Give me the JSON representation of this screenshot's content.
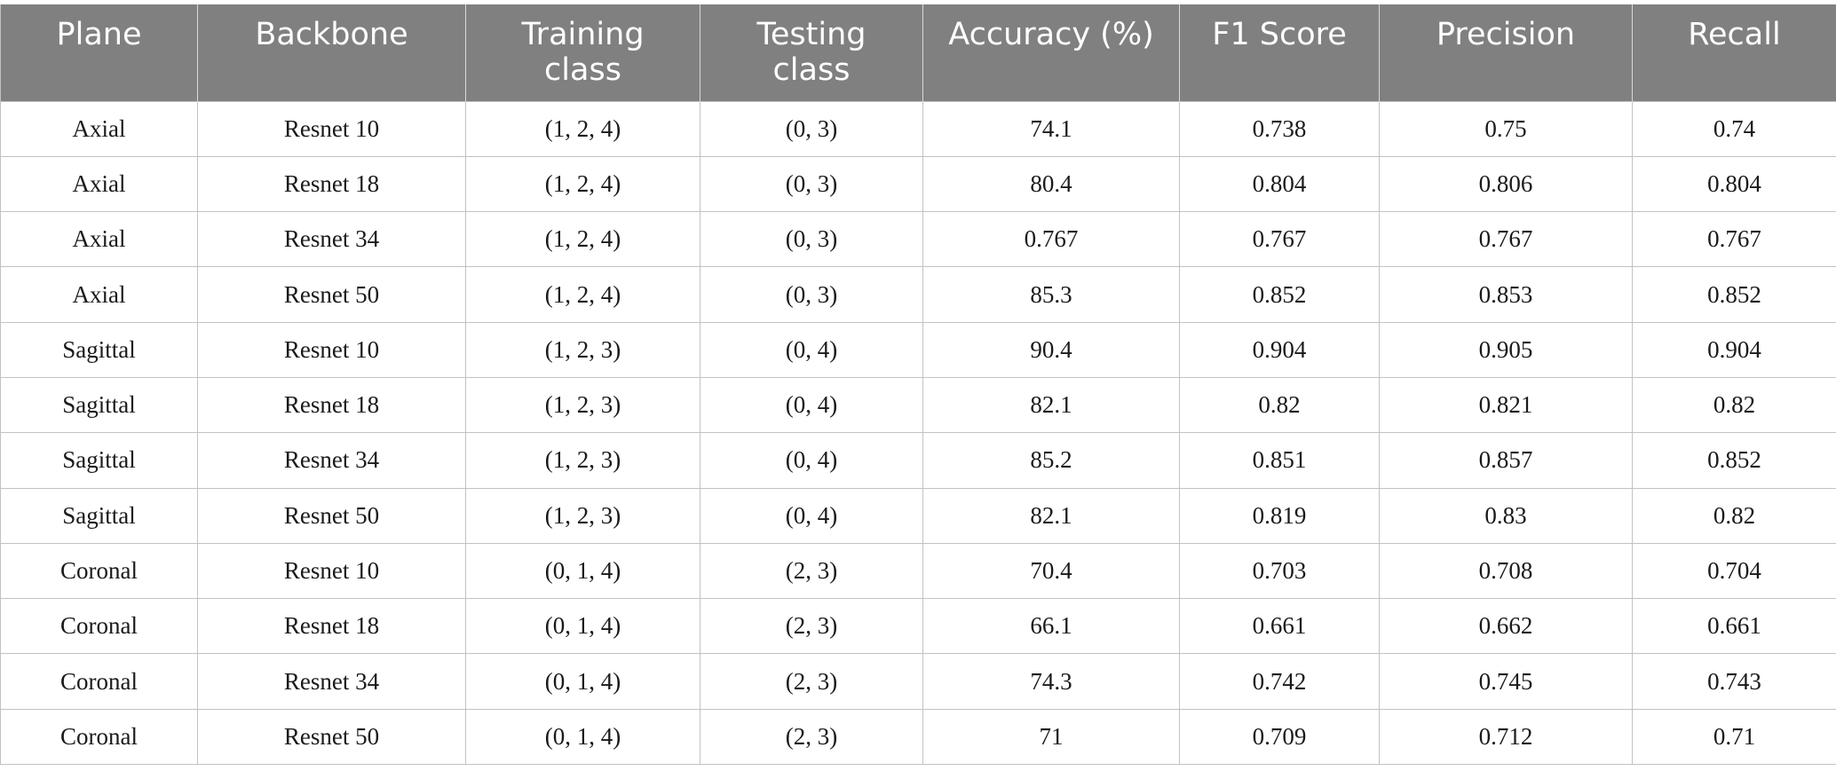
{
  "table": {
    "headers": [
      "Plane",
      "Backbone",
      "Training\nclass",
      "Testing\nclass",
      "Accuracy (%)",
      "F1 Score",
      "Precision",
      "Recall"
    ],
    "rows": [
      [
        "Axial",
        "Resnet 10",
        "(1, 2, 4)",
        "(0, 3)",
        "74.1",
        "0.738",
        "0.75",
        "0.74"
      ],
      [
        "Axial",
        "Resnet 18",
        "(1, 2, 4)",
        "(0, 3)",
        "80.4",
        "0.804",
        "0.806",
        "0.804"
      ],
      [
        "Axial",
        "Resnet 34",
        "(1, 2, 4)",
        "(0, 3)",
        "0.767",
        "0.767",
        "0.767",
        "0.767"
      ],
      [
        "Axial",
        "Resnet 50",
        "(1, 2, 4)",
        "(0, 3)",
        "85.3",
        "0.852",
        "0.853",
        "0.852"
      ],
      [
        "Sagittal",
        "Resnet 10",
        "(1, 2, 3)",
        "(0, 4)",
        "90.4",
        "0.904",
        "0.905",
        "0.904"
      ],
      [
        "Sagittal",
        "Resnet 18",
        "(1, 2, 3)",
        "(0, 4)",
        "82.1",
        "0.82",
        "0.821",
        "0.82"
      ],
      [
        "Sagittal",
        "Resnet 34",
        "(1, 2, 3)",
        "(0, 4)",
        "85.2",
        "0.851",
        "0.857",
        "0.852"
      ],
      [
        "Sagittal",
        "Resnet 50",
        "(1, 2, 3)",
        "(0, 4)",
        "82.1",
        "0.819",
        "0.83",
        "0.82"
      ],
      [
        "Coronal",
        "Resnet 10",
        "(0, 1, 4)",
        "(2, 3)",
        "70.4",
        "0.703",
        "0.708",
        "0.704"
      ],
      [
        "Coronal",
        "Resnet 18",
        "(0, 1, 4)",
        "(2, 3)",
        "66.1",
        "0.661",
        "0.662",
        "0.661"
      ],
      [
        "Coronal",
        "Resnet 34",
        "(0, 1, 4)",
        "(2, 3)",
        "74.3",
        "0.742",
        "0.745",
        "0.743"
      ],
      [
        "Coronal",
        "Resnet 50",
        "(0, 1, 4)",
        "(2, 3)",
        "71",
        "0.709",
        "0.712",
        "0.71"
      ]
    ],
    "colors": {
      "header_background": "#808080",
      "header_text": "#ffffff",
      "grid_line": "#c2c2c2"
    }
  }
}
